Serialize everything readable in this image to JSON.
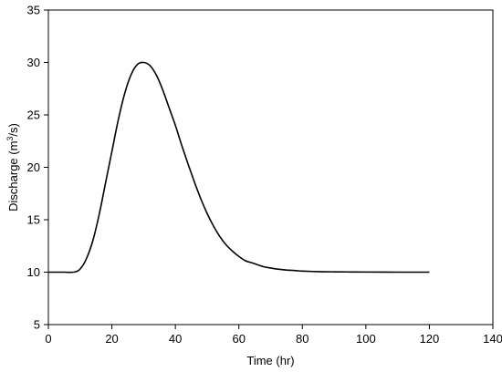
{
  "chart_data": {
    "type": "line",
    "xlabel": "Time (hr)",
    "ylabel_parts": {
      "prefix": "Discharge (m",
      "superscript": "3",
      "suffix": "/s)"
    },
    "xlim": [
      0,
      140
    ],
    "ylim": [
      5,
      35
    ],
    "x_ticks": [
      0,
      20,
      40,
      60,
      80,
      100,
      120,
      140
    ],
    "y_ticks": [
      5,
      10,
      15,
      20,
      25,
      30,
      35
    ],
    "grid": false,
    "series": [
      {
        "color": "#000000",
        "x": [
          0,
          5,
          8,
          10,
          12,
          14,
          16,
          18,
          20,
          22,
          24,
          26,
          28,
          30,
          32,
          34,
          36,
          38,
          40,
          42,
          44,
          46,
          48,
          50,
          52,
          54,
          56,
          58,
          60,
          62,
          64,
          66,
          68,
          70,
          72,
          75,
          78,
          80,
          85,
          90,
          95,
          100,
          110,
          120
        ],
        "y": [
          10,
          10,
          10,
          10.3,
          11.3,
          13.0,
          15.5,
          18.5,
          21.5,
          24.5,
          27.0,
          28.8,
          29.8,
          30.0,
          29.7,
          28.8,
          27.4,
          25.7,
          24.0,
          22.1,
          20.3,
          18.6,
          17.0,
          15.6,
          14.4,
          13.4,
          12.6,
          12.0,
          11.5,
          11.1,
          10.9,
          10.7,
          10.5,
          10.4,
          10.3,
          10.2,
          10.15,
          10.1,
          10.05,
          10.03,
          10.02,
          10.01,
          10.0,
          10.0
        ]
      }
    ]
  }
}
